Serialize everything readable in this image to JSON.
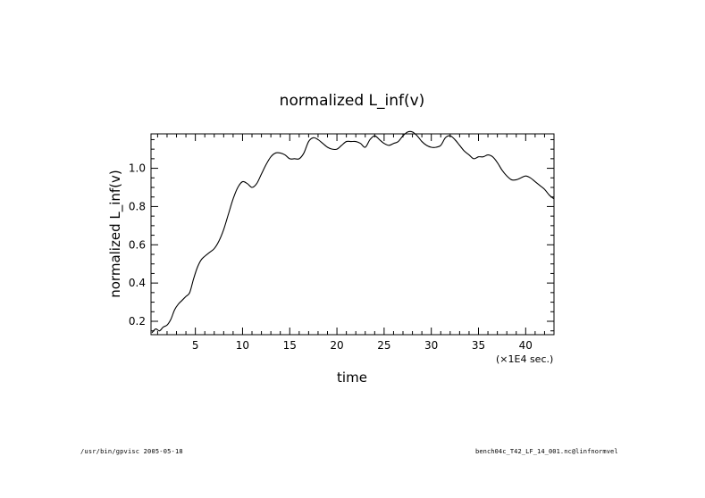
{
  "chart_data": {
    "type": "line",
    "title": "normalized L_inf(v)",
    "xlabel": "time",
    "ylabel": "normalized L_inf(v)",
    "x_unit_label": "(×1E4 sec.)",
    "xlim": [
      0.3,
      43
    ],
    "ylim": [
      0.13,
      1.18
    ],
    "x_ticks": [
      5,
      10,
      15,
      20,
      25,
      30,
      35,
      40
    ],
    "y_ticks": [
      0.2,
      0.4,
      0.6,
      0.8,
      1.0
    ],
    "y_tick_labels": [
      "0.2",
      "0.4",
      "0.6",
      "0.8",
      "1.0"
    ],
    "grid": false,
    "legend": "none",
    "series": [
      {
        "color": "#000000",
        "x": [
          0.4,
          0.8,
          1.2,
          1.6,
          2.0,
          2.4,
          2.8,
          3.2,
          3.6,
          4.0,
          4.4,
          4.8,
          5.2,
          5.6,
          6.0,
          6.5,
          7.0,
          7.5,
          8.0,
          8.5,
          9.0,
          9.5,
          10.0,
          10.5,
          11.0,
          11.5,
          12.0,
          12.5,
          13.0,
          13.5,
          14.0,
          14.5,
          15.0,
          15.5,
          16.0,
          16.5,
          17.0,
          17.5,
          18.0,
          18.5,
          19.0,
          19.5,
          20.0,
          20.5,
          21.0,
          21.5,
          22.0,
          22.5,
          23.0,
          23.5,
          24.0,
          24.5,
          25.0,
          25.5,
          26.0,
          26.5,
          27.0,
          27.5,
          28.0,
          28.5,
          29.0,
          29.5,
          30.0,
          30.5,
          31.0,
          31.5,
          32.0,
          32.5,
          33.0,
          33.5,
          34.0,
          34.5,
          35.0,
          35.5,
          36.0,
          36.5,
          37.0,
          37.5,
          38.0,
          38.5,
          39.0,
          39.5,
          40.0,
          40.5,
          41.0,
          41.5,
          42.0,
          42.5,
          43.0
        ],
        "y": [
          0.14,
          0.16,
          0.15,
          0.17,
          0.18,
          0.21,
          0.26,
          0.29,
          0.31,
          0.33,
          0.35,
          0.42,
          0.48,
          0.52,
          0.54,
          0.56,
          0.58,
          0.62,
          0.68,
          0.76,
          0.84,
          0.9,
          0.93,
          0.92,
          0.9,
          0.92,
          0.97,
          1.02,
          1.06,
          1.08,
          1.08,
          1.07,
          1.05,
          1.05,
          1.05,
          1.08,
          1.14,
          1.16,
          1.15,
          1.13,
          1.11,
          1.1,
          1.1,
          1.12,
          1.14,
          1.14,
          1.14,
          1.13,
          1.11,
          1.15,
          1.17,
          1.15,
          1.13,
          1.12,
          1.13,
          1.14,
          1.17,
          1.19,
          1.19,
          1.17,
          1.14,
          1.12,
          1.11,
          1.11,
          1.12,
          1.16,
          1.17,
          1.15,
          1.12,
          1.09,
          1.07,
          1.05,
          1.06,
          1.06,
          1.07,
          1.06,
          1.03,
          0.99,
          0.96,
          0.94,
          0.94,
          0.95,
          0.96,
          0.95,
          0.93,
          0.91,
          0.89,
          0.86,
          0.84
        ]
      }
    ]
  },
  "footer": {
    "left": "/usr/bin/gpvisc  2005-05-18",
    "right": "bench04c_T42_LF_14_001.nc@linfnormvel"
  }
}
